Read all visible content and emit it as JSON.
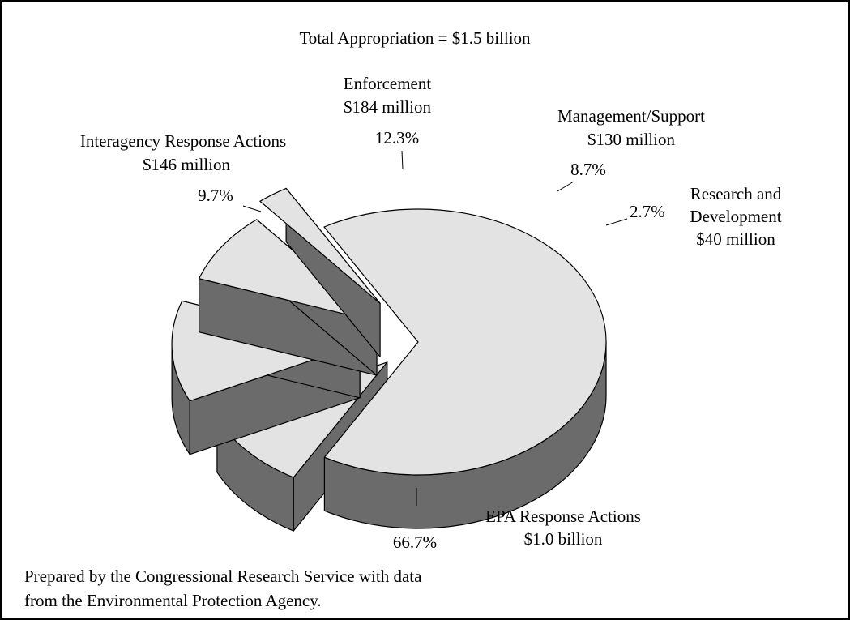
{
  "chart_data": {
    "type": "pie",
    "style": "3d-exploded",
    "title": "Total Appropriation = $1.5 billion",
    "slices": [
      {
        "name": "EPA Response Actions",
        "amount": "$1.0 billion",
        "percent": 66.7,
        "percent_label": "66.7%",
        "exploded": false
      },
      {
        "name": "Interagency Response Actions",
        "amount": "$146 million",
        "percent": 9.7,
        "percent_label": "9.7%",
        "exploded": true
      },
      {
        "name": "Enforcement",
        "amount": "$184 million",
        "percent": 12.3,
        "percent_label": "12.3%",
        "exploded": true
      },
      {
        "name": "Management/Support",
        "amount": "$130 million",
        "percent": 8.7,
        "percent_label": "8.7%",
        "exploded": true
      },
      {
        "name_lines": [
          "Research and",
          "Development"
        ],
        "amount": "$40 million",
        "percent": 2.7,
        "percent_label": "2.7%",
        "exploded": true
      }
    ],
    "colors": {
      "top": "#e3e3e3",
      "side": "#6b6b6b",
      "outline": "#000000"
    }
  },
  "source_note": {
    "line1": "Prepared by the Congressional Research Service with data",
    "line2": "from the Environmental Protection Agency."
  }
}
